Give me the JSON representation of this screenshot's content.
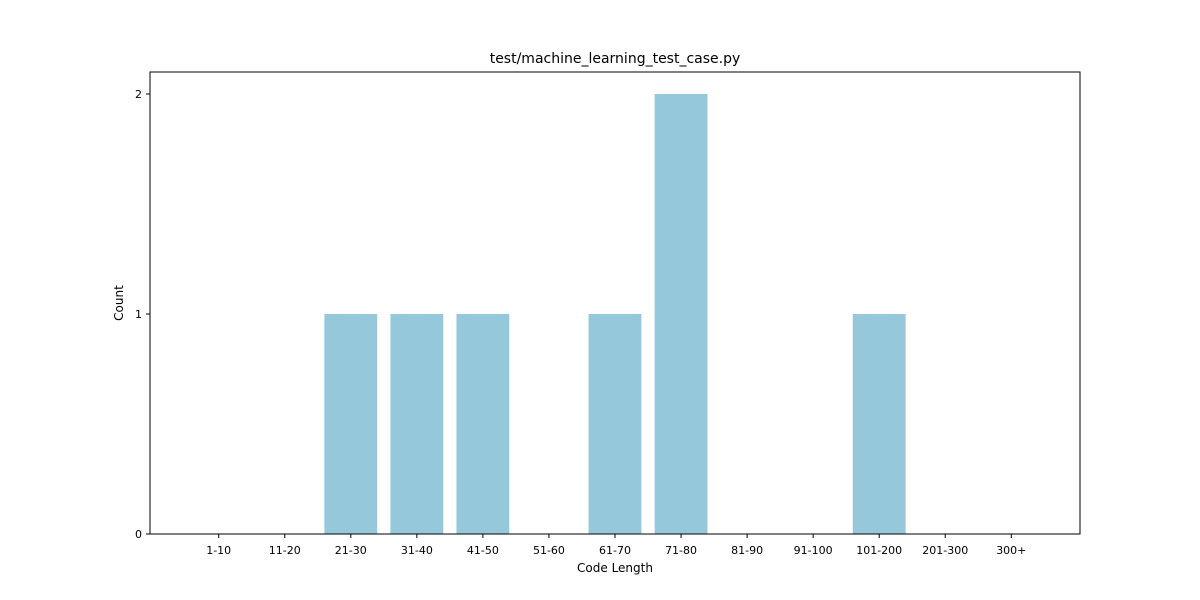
{
  "chart_data": {
    "type": "bar",
    "title": "test/machine_learning_test_case.py",
    "xlabel": "Code Length",
    "ylabel": "Count",
    "categories": [
      "1-10",
      "11-20",
      "21-30",
      "31-40",
      "41-50",
      "51-60",
      "61-70",
      "71-80",
      "81-90",
      "91-100",
      "101-200",
      "201-300",
      "300+"
    ],
    "values": [
      0,
      0,
      1,
      1,
      1,
      0,
      1,
      2,
      0,
      0,
      1,
      0,
      0
    ],
    "ylim": [
      0,
      2.1
    ],
    "yticks": [
      0,
      1,
      2
    ],
    "bar_color": "#96c8dc",
    "grid": false,
    "legend": "none"
  }
}
